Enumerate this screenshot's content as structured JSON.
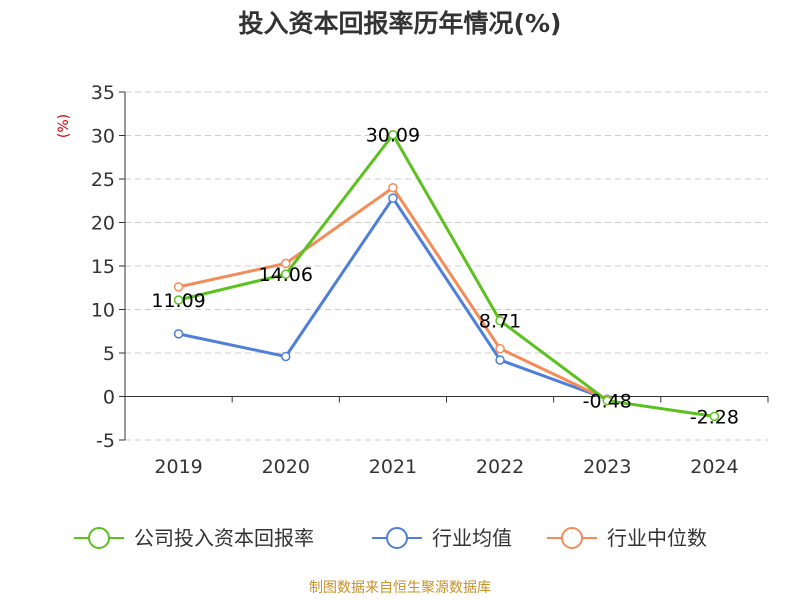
{
  "chart_data": {
    "type": "line",
    "title": "投入资本回报率历年情况(%)",
    "ylabel": "(%)",
    "categories": [
      "2019",
      "2020",
      "2021",
      "2022",
      "2023",
      "2024"
    ],
    "ylim": [
      -5,
      35
    ],
    "yticks": [
      35,
      30,
      25,
      20,
      15,
      10,
      5,
      0,
      -5
    ],
    "grid": true,
    "legend_position": "bottom",
    "series": [
      {
        "name": "公司投入资本回报率",
        "color": "#5cc11f",
        "values": [
          11.09,
          14.06,
          30.09,
          8.71,
          -0.48,
          -2.28
        ],
        "labels": [
          "11.09",
          "14.06",
          "30.09",
          "8.71",
          "-0.48",
          "-2.28"
        ]
      },
      {
        "name": "行业均值",
        "color": "#4f7fd8",
        "values": [
          7.2,
          4.6,
          22.8,
          4.2,
          -0.3,
          null
        ]
      },
      {
        "name": "行业中位数",
        "color": "#f28c5a",
        "values": [
          12.6,
          15.3,
          24.0,
          5.5,
          -0.35,
          null
        ]
      }
    ],
    "source": "制图数据来自恒生聚源数据库"
  }
}
